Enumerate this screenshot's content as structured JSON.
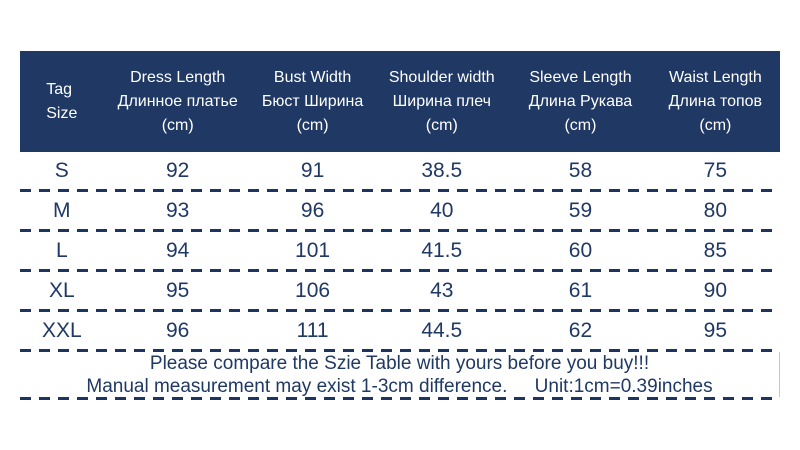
{
  "colors": {
    "header_bg": "#1F3864",
    "header_text": "#FFFFFF",
    "body_text": "#1F3864",
    "divider": "#1B3560",
    "page_bg": "#FFFFFF",
    "footer_side_border": "#C6C6C6"
  },
  "chart_data": {
    "type": "table",
    "title": "Garment size table",
    "columns": [
      "Tag Size",
      "Dress Length Длинное платье (cm)",
      "Bust Width Бюст Ширина (cm)",
      "Shoulder width Ширина плеч (cm)",
      "Sleeve Length Длина Рукава (cm)",
      "Waist Length Длина топов (cm)"
    ],
    "rows": [
      [
        "S",
        "92",
        "91",
        "38.5",
        "58",
        "75"
      ],
      [
        "M",
        "93",
        "96",
        "40",
        "59",
        "80"
      ],
      [
        "L",
        "94",
        "101",
        "41.5",
        "60",
        "85"
      ],
      [
        "XL",
        "95",
        "106",
        "43",
        "61",
        "90"
      ],
      [
        "XXL",
        "96",
        "111",
        "44.5",
        "62",
        "95"
      ]
    ],
    "notes": [
      "Please compare the Szie Table with yours before you buy!!!",
      "Manual measurement may exist 1-3cm difference.    Unit:1cm=0.39inches"
    ]
  },
  "ui": {
    "header": {
      "tag_col": {
        "line1": "Tag",
        "line2": "Size"
      },
      "columns": [
        {
          "en": "Dress Length",
          "ru": "Длинное платье",
          "unit": "(cm)"
        },
        {
          "en": "Bust Width",
          "ru": "Бюст Ширина",
          "unit": "(cm)"
        },
        {
          "en": "Shoulder width",
          "ru": "Ширина плеч",
          "unit": "(cm)"
        },
        {
          "en": "Sleeve Length",
          "ru": "Длина Рукава",
          "unit": "(cm)"
        },
        {
          "en": "Waist Length",
          "ru": "Длина топов",
          "unit": "(cm)"
        }
      ]
    },
    "footer": {
      "line1": "Please compare the Szie Table with yours before you buy!!!",
      "line2_part1": "Manual measurement may exist 1-3cm difference.",
      "line2_part2": "Unit:1cm=0.39inches"
    }
  }
}
